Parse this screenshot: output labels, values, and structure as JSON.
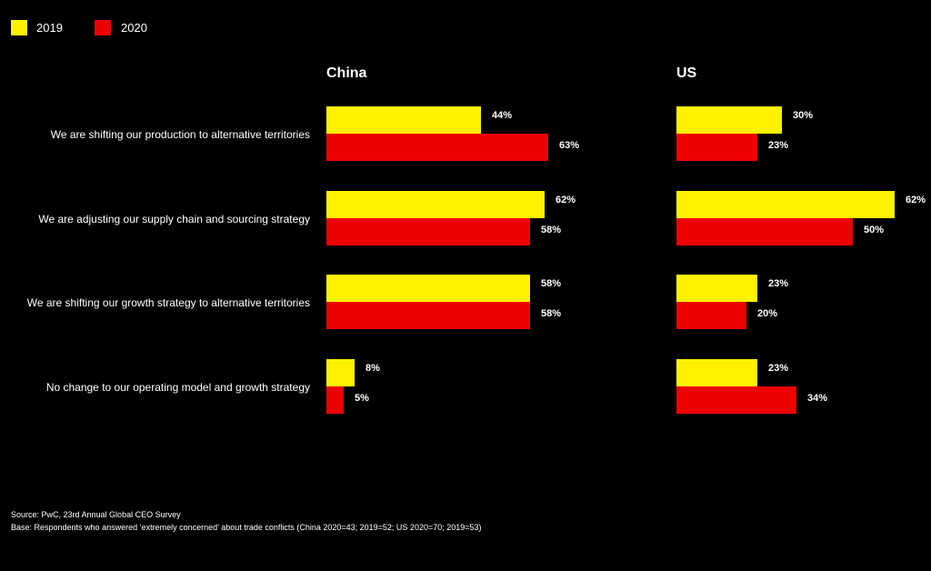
{
  "chart_data": {
    "type": "bar",
    "orientation": "horizontal",
    "legend": [
      {
        "name": "2019",
        "color": "#FFF200"
      },
      {
        "name": "2020",
        "color": "#EE0000"
      }
    ],
    "legend_placement": "top-left",
    "categories": [
      "We are shifting our production to alternative territories",
      "We are adjusting our supply chain and sourcing strategy",
      "We are shifting our growth strategy to alternative territories",
      "No change to our operating model and growth strategy"
    ],
    "panels": [
      {
        "title": "China",
        "series": [
          {
            "name": "2019",
            "values": [
              44,
              62,
              58,
              8
            ]
          },
          {
            "name": "2020",
            "values": [
              63,
              58,
              58,
              5
            ]
          }
        ]
      },
      {
        "title": "US",
        "series": [
          {
            "name": "2019",
            "values": [
              30,
              62,
              23,
              23
            ]
          },
          {
            "name": "2020",
            "values": [
              23,
              50,
              20,
              34
            ]
          }
        ]
      }
    ],
    "value_suffix": "%",
    "grid": false
  },
  "footnotes": {
    "source": "Source: PwC, 23rd Annual Global CEO Survey",
    "base": "Base: Respondents who answered ‘extremely concerned’ about trade conflicts (China 2020=43; 2019=52; US 2020=70; 2019=53)"
  }
}
